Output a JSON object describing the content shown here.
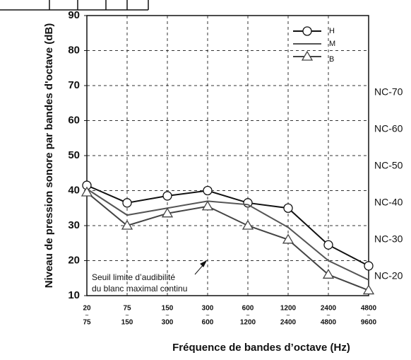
{
  "chart_data": {
    "type": "line",
    "y_label": "Niveau de pression sonore par bandes d'octave (dB)",
    "x_label": "Fréquence de bandes d’octave (Hz)",
    "category_low": [
      "20",
      "75",
      "150",
      "300",
      "600",
      "1200",
      "2400",
      "4800"
    ],
    "category_high": [
      "75",
      "150",
      "300",
      "600",
      "1200",
      "2400",
      "4800",
      "9600"
    ],
    "series": [
      {
        "name": "H",
        "color": "#111111",
        "marker": "circle",
        "values": [
          41.5,
          36.5,
          38.5,
          40,
          36.5,
          35,
          24.5,
          18.5
        ]
      },
      {
        "name": "M",
        "color": "#555555",
        "marker": "none",
        "values": [
          40.5,
          33,
          35,
          37,
          36,
          29.5,
          20,
          14.5
        ]
      },
      {
        "name": "B",
        "color": "#444444",
        "marker": "triangle",
        "values": [
          39.5,
          30,
          33.5,
          35.5,
          30,
          26,
          16,
          11.5
        ]
      }
    ],
    "ylim": [
      10,
      90
    ],
    "yticks": [
      10,
      20,
      30,
      40,
      50,
      60,
      70,
      80,
      90
    ],
    "grid": true,
    "nc_labels": [
      "NC-70",
      "NC-60",
      "NC-50",
      "NC-40",
      "NC-30",
      "NC-20"
    ],
    "annotation": [
      "Seuil limite d’audibilité",
      "du blanc maximal continu"
    ]
  }
}
